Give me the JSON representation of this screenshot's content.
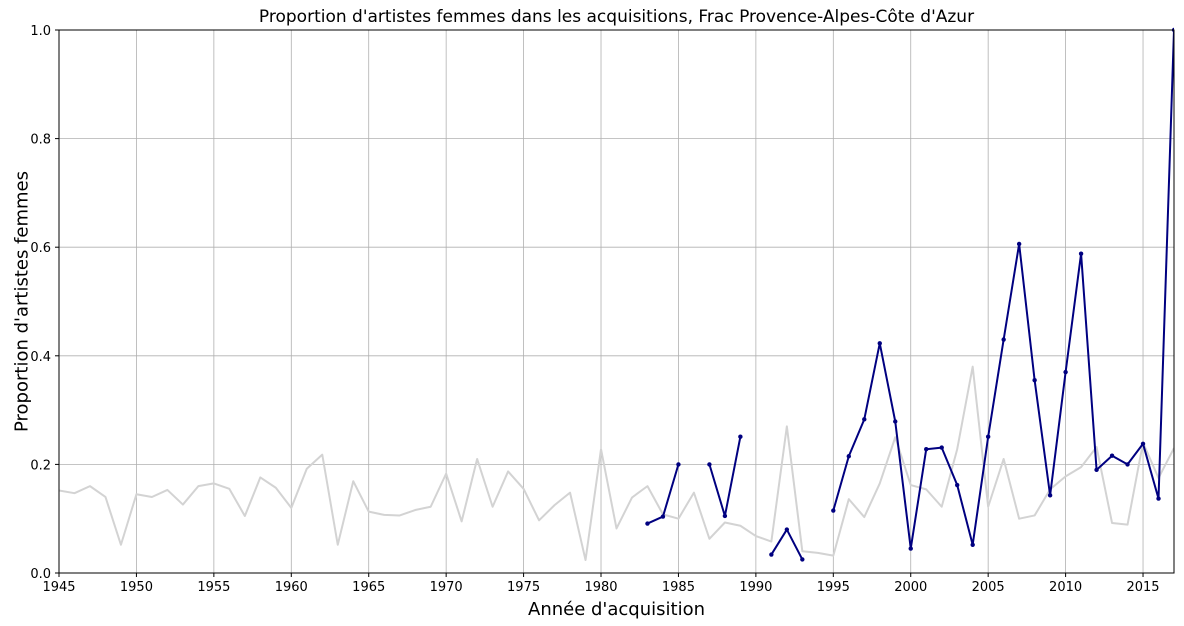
{
  "chart_data": {
    "type": "line",
    "title": "Proportion d'artistes femmes dans les acquisitions, Frac Provence-Alpes-Côte d'Azur",
    "xlabel": "Année d'acquisition",
    "ylabel": "Proportion d'artistes femmes",
    "xlim": [
      1945,
      2017
    ],
    "ylim": [
      0,
      1.0
    ],
    "x_ticks": [
      1945,
      1950,
      1955,
      1960,
      1965,
      1970,
      1975,
      1980,
      1985,
      1990,
      1995,
      2000,
      2005,
      2010,
      2015
    ],
    "y_ticks": [
      0.0,
      0.2,
      0.4,
      0.6,
      0.8,
      1.0
    ],
    "y_tick_labels": [
      "0.0",
      "0.2",
      "0.4",
      "0.6",
      "0.8",
      "1.0"
    ],
    "grid": true,
    "series": [
      {
        "color": "#d3d3d3",
        "marker": "none",
        "points": [
          [
            1945,
            0.152
          ],
          [
            1946,
            0.147
          ],
          [
            1947,
            0.16
          ],
          [
            1948,
            0.14
          ],
          [
            1949,
            0.052
          ],
          [
            1950,
            0.145
          ],
          [
            1951,
            0.14
          ],
          [
            1952,
            0.153
          ],
          [
            1953,
            0.126
          ],
          [
            1954,
            0.16
          ],
          [
            1955,
            0.165
          ],
          [
            1956,
            0.155
          ],
          [
            1957,
            0.105
          ],
          [
            1958,
            0.176
          ],
          [
            1959,
            0.157
          ],
          [
            1960,
            0.12
          ],
          [
            1961,
            0.192
          ],
          [
            1962,
            0.218
          ],
          [
            1963,
            0.052
          ],
          [
            1964,
            0.169
          ],
          [
            1965,
            0.113
          ],
          [
            1966,
            0.107
          ],
          [
            1967,
            0.106
          ],
          [
            1968,
            0.116
          ],
          [
            1969,
            0.122
          ],
          [
            1970,
            0.183
          ],
          [
            1971,
            0.095
          ],
          [
            1972,
            0.21
          ],
          [
            1973,
            0.122
          ],
          [
            1974,
            0.187
          ],
          [
            1975,
            0.155
          ],
          [
            1976,
            0.097
          ],
          [
            1977,
            0.125
          ],
          [
            1978,
            0.148
          ],
          [
            1979,
            0.024
          ],
          [
            1980,
            0.228
          ],
          [
            1981,
            0.082
          ],
          [
            1982,
            0.139
          ],
          [
            1983,
            0.16
          ],
          [
            1984,
            0.108
          ],
          [
            1985,
            0.1
          ],
          [
            1986,
            0.148
          ],
          [
            1987,
            0.063
          ],
          [
            1988,
            0.093
          ],
          [
            1989,
            0.087
          ],
          [
            1990,
            0.068
          ],
          [
            1991,
            0.058
          ],
          [
            1992,
            0.27
          ],
          [
            1993,
            0.04
          ],
          [
            1994,
            0.037
          ],
          [
            1995,
            0.032
          ],
          [
            1996,
            0.136
          ],
          [
            1997,
            0.103
          ],
          [
            1998,
            0.165
          ],
          [
            1999,
            0.25
          ],
          [
            2000,
            0.162
          ],
          [
            2001,
            0.154
          ],
          [
            2002,
            0.122
          ],
          [
            2003,
            0.228
          ],
          [
            2004,
            0.38
          ],
          [
            2005,
            0.122
          ],
          [
            2006,
            0.21
          ],
          [
            2007,
            0.1
          ],
          [
            2008,
            0.106
          ],
          [
            2009,
            0.154
          ],
          [
            2010,
            0.178
          ],
          [
            2011,
            0.195
          ],
          [
            2012,
            0.232
          ],
          [
            2013,
            0.092
          ],
          [
            2014,
            0.089
          ],
          [
            2015,
            0.24
          ],
          [
            2016,
            0.175
          ],
          [
            2017,
            0.23
          ]
        ]
      },
      {
        "color": "#000080",
        "marker": "dot",
        "segments": [
          [
            [
              1983,
              0.091
            ],
            [
              1984,
              0.104
            ],
            [
              1985,
              0.2
            ]
          ],
          [
            [
              1987,
              0.2
            ],
            [
              1988,
              0.105
            ],
            [
              1989,
              0.251
            ]
          ],
          [
            [
              1991,
              0.034
            ],
            [
              1992,
              0.08
            ],
            [
              1993,
              0.025
            ]
          ],
          [
            [
              1995,
              0.115
            ],
            [
              1996,
              0.215
            ],
            [
              1997,
              0.283
            ],
            [
              1998,
              0.423
            ],
            [
              1999,
              0.279
            ],
            [
              2000,
              0.045
            ],
            [
              2001,
              0.228
            ],
            [
              2002,
              0.231
            ],
            [
              2003,
              0.162
            ],
            [
              2004,
              0.052
            ],
            [
              2005,
              0.251
            ],
            [
              2006,
              0.43
            ],
            [
              2007,
              0.606
            ],
            [
              2008,
              0.355
            ],
            [
              2009,
              0.143
            ],
            [
              2010,
              0.37
            ],
            [
              2011,
              0.588
            ],
            [
              2012,
              0.19
            ],
            [
              2013,
              0.216
            ],
            [
              2014,
              0.2
            ],
            [
              2015,
              0.238
            ],
            [
              2016,
              0.137
            ],
            [
              2017,
              1.0
            ]
          ]
        ]
      }
    ]
  }
}
